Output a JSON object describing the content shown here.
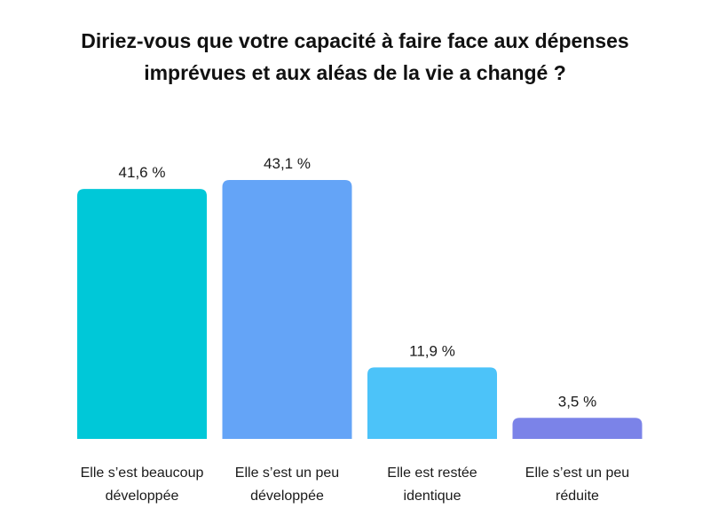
{
  "chart_data": {
    "type": "bar",
    "title_lines": [
      "Diriez-vous que votre capacité à faire face aux dépenses",
      "imprévues et aux aléas de la vie a changé ?"
    ],
    "categories": [
      [
        "Elle s’est beaucoup",
        "développée"
      ],
      [
        "Elle s’est un peu",
        "développée"
      ],
      [
        "Elle est restée",
        "identique"
      ],
      [
        "Elle s’est un peu",
        "réduite"
      ]
    ],
    "values": [
      41.6,
      43.1,
      11.9,
      3.5
    ],
    "value_labels": [
      "41,6 %",
      "43,1 %",
      "11,9 %",
      "3,5 %"
    ],
    "colors": [
      "#00C8D8",
      "#64A4F7",
      "#4CC3F9",
      "#7B83E8"
    ],
    "ylim": [
      0,
      43.1
    ],
    "grid": false,
    "legend": "none"
  }
}
